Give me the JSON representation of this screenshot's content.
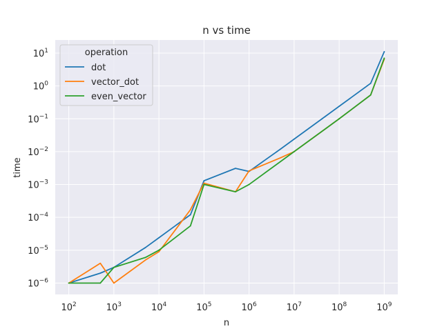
{
  "chart_data": {
    "type": "line",
    "title": "n vs time",
    "xlabel": "n",
    "ylabel": "time",
    "xscale": "log",
    "yscale": "log",
    "xlim": [
      50,
      2000000000
    ],
    "ylim": [
      4.5e-07,
      25
    ],
    "xticks": [
      {
        "base": "10",
        "exp": "2",
        "value": 100
      },
      {
        "base": "10",
        "exp": "3",
        "value": 1000
      },
      {
        "base": "10",
        "exp": "4",
        "value": 10000
      },
      {
        "base": "10",
        "exp": "5",
        "value": 100000
      },
      {
        "base": "10",
        "exp": "6",
        "value": 1000000
      },
      {
        "base": "10",
        "exp": "7",
        "value": 10000000
      },
      {
        "base": "10",
        "exp": "8",
        "value": 100000000
      },
      {
        "base": "10",
        "exp": "9",
        "value": 1000000000
      }
    ],
    "yticks": [
      {
        "base": "10",
        "exp": "−6",
        "value": 1e-06
      },
      {
        "base": "10",
        "exp": "−5",
        "value": 1e-05
      },
      {
        "base": "10",
        "exp": "−4",
        "value": 0.0001
      },
      {
        "base": "10",
        "exp": "−3",
        "value": 0.001
      },
      {
        "base": "10",
        "exp": "−2",
        "value": 0.01
      },
      {
        "base": "10",
        "exp": "−1",
        "value": 0.1
      },
      {
        "base": "10",
        "exp": "0",
        "value": 1
      },
      {
        "base": "10",
        "exp": "1",
        "value": 10
      }
    ],
    "grid": true,
    "legend": {
      "title": "operation",
      "placement": "top-left"
    },
    "series": [
      {
        "name": "dot",
        "color": "#1f77b4",
        "x": [
          100,
          500,
          1000,
          5000,
          10000,
          50000,
          100000,
          500000,
          1000000,
          5000000,
          10000000,
          50000000,
          100000000,
          500000000,
          1000000000
        ],
        "y": [
          1e-06,
          2e-06,
          3e-06,
          1.2e-05,
          2.4e-05,
          0.00012,
          0.0013,
          0.0031,
          0.0025,
          0.012,
          0.024,
          0.12,
          0.24,
          1.2,
          11
        ]
      },
      {
        "name": "vector_dot",
        "color": "#ff7f0e",
        "x": [
          100,
          500,
          1000,
          5000,
          10000,
          50000,
          100000,
          500000,
          1000000,
          5000000,
          10000000,
          50000000,
          100000000,
          500000000,
          1000000000
        ],
        "y": [
          1e-06,
          4e-06,
          1e-06,
          5e-06,
          9e-06,
          0.00017,
          0.0011,
          0.0006,
          0.0026,
          0.0065,
          0.01,
          0.05,
          0.1,
          0.53,
          6.5
        ]
      },
      {
        "name": "even_vector",
        "color": "#2ca02c",
        "x": [
          100,
          500,
          1000,
          5000,
          10000,
          50000,
          100000,
          500000,
          1000000,
          5000000,
          10000000,
          50000000,
          100000000,
          500000000,
          1000000000
        ],
        "y": [
          1e-06,
          1e-06,
          3e-06,
          6e-06,
          1e-05,
          5.5e-05,
          0.001,
          0.0006,
          0.001,
          0.005,
          0.01,
          0.05,
          0.1,
          0.53,
          7
        ]
      }
    ]
  }
}
